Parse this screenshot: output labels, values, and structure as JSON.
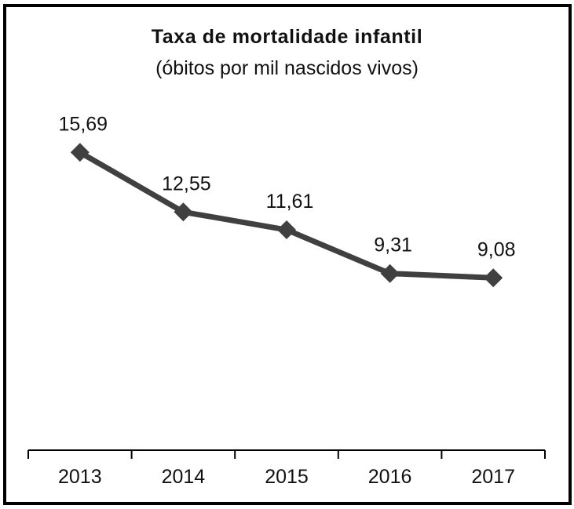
{
  "chart_data": {
    "type": "line",
    "title": "Taxa de mortalidade infantil",
    "subtitle": "(óbitos por mil nascidos vivos)",
    "xlabel": "",
    "ylabel": "",
    "categories": [
      "2013",
      "2014",
      "2015",
      "2016",
      "2017"
    ],
    "series": [
      {
        "name": "Taxa de mortalidade infantil",
        "values": [
          15.69,
          12.55,
          11.61,
          9.31,
          9.08
        ],
        "labels": [
          "15,69",
          "12,55",
          "11,61",
          "9,31",
          "9,08"
        ]
      }
    ],
    "ylim": [
      0,
      20
    ],
    "grid": false,
    "legend": "none",
    "colors": {
      "line": "#404040",
      "text": "#111111",
      "axis": "#000000"
    }
  }
}
